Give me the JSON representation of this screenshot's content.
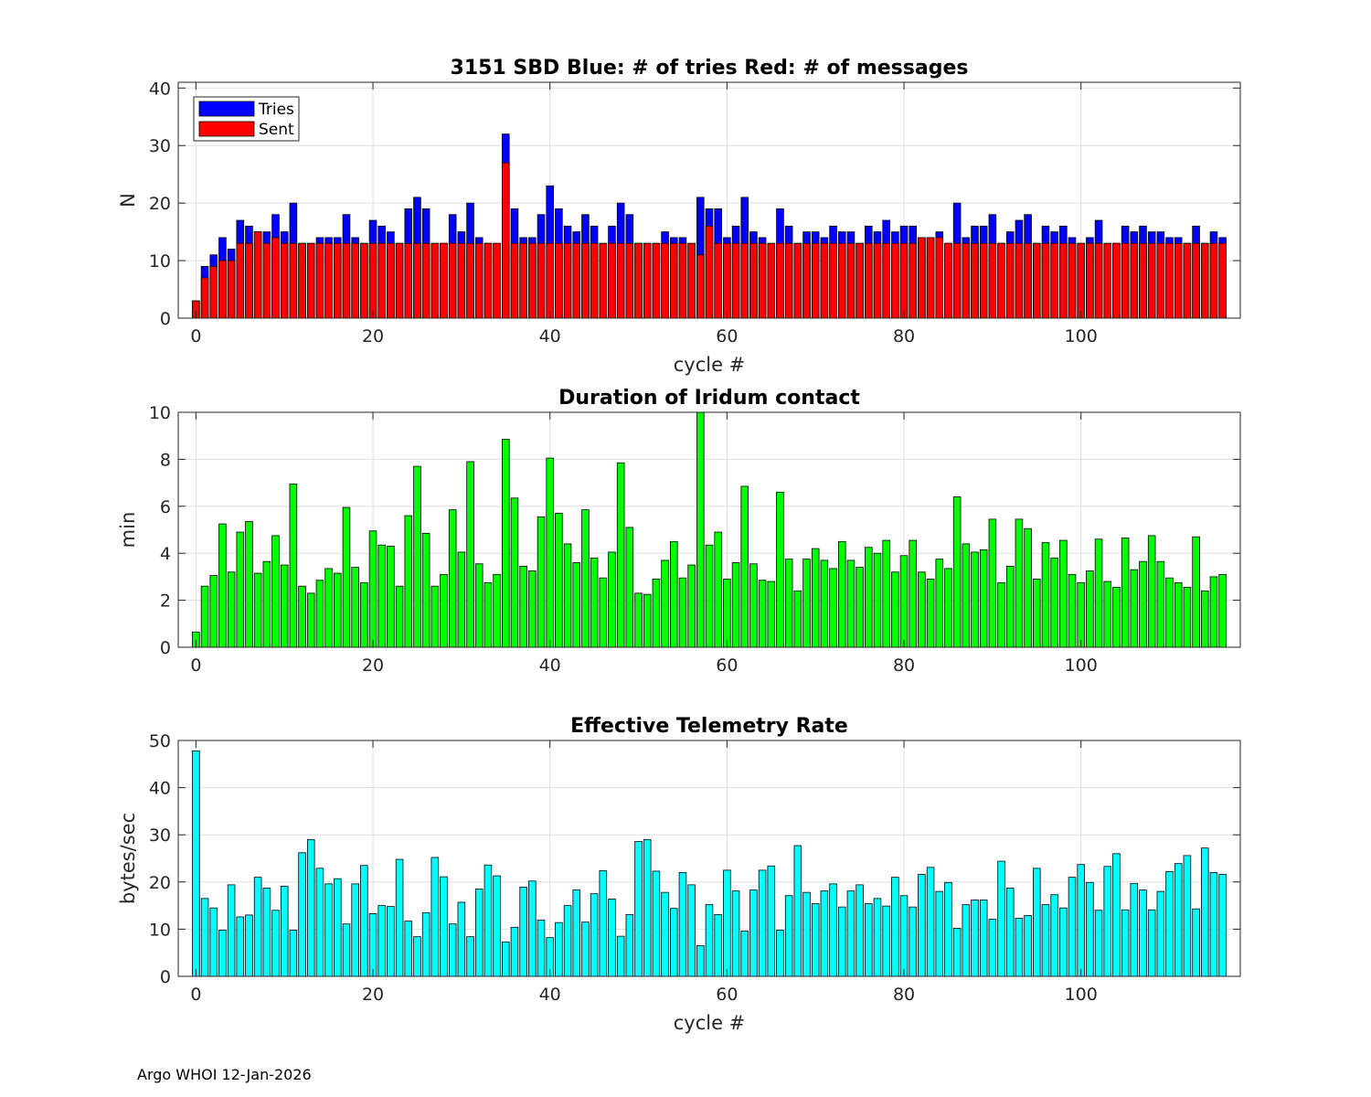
{
  "footer": "Argo WHOI 12-Jan-2026",
  "chart_data": [
    {
      "type": "bar",
      "title": "3151 SBD  Blue: # of tries   Red: # of messages",
      "xlabel": "cycle #",
      "ylabel": "N",
      "xlim": [
        -2,
        118
      ],
      "ylim": [
        0,
        41
      ],
      "xticks": [
        0,
        20,
        40,
        60,
        80,
        100
      ],
      "yticks": [
        0,
        10,
        20,
        30,
        40
      ],
      "grid": true,
      "legend": "top-left",
      "x_start": 0,
      "series": [
        {
          "name": "Tries",
          "color": "#0000ff",
          "values": [
            3,
            9,
            11,
            14,
            12,
            17,
            16,
            15,
            15,
            18,
            15,
            20,
            13,
            13,
            14,
            14,
            14,
            18,
            14,
            13,
            17,
            16,
            15,
            13,
            19,
            21,
            19,
            13,
            13,
            18,
            15,
            20,
            14,
            13,
            13,
            32,
            19,
            14,
            14,
            18,
            23,
            19,
            16,
            15,
            18,
            16,
            13,
            16,
            20,
            18,
            13,
            13,
            13,
            15,
            14,
            14,
            13,
            21,
            19,
            19,
            14,
            16,
            21,
            15,
            14,
            13,
            19,
            16,
            13,
            15,
            15,
            14,
            16,
            15,
            15,
            13,
            16,
            15,
            17,
            15,
            16,
            16,
            14,
            14,
            15,
            13,
            20,
            14,
            16,
            16,
            18,
            13,
            15,
            17,
            18,
            13,
            16,
            15,
            16,
            14,
            13,
            14,
            17,
            13,
            13,
            16,
            15,
            16,
            15,
            15,
            14,
            14,
            13,
            16,
            13,
            15,
            14
          ]
        },
        {
          "name": "Sent",
          "color": "#ff0000",
          "values": [
            3,
            7,
            9,
            10,
            10,
            13,
            13,
            15,
            13,
            14,
            13,
            13,
            13,
            13,
            13,
            13,
            13,
            13,
            13,
            13,
            13,
            13,
            13,
            13,
            13,
            13,
            13,
            13,
            13,
            13,
            13,
            13,
            13,
            13,
            13,
            27,
            13,
            13,
            13,
            13,
            13,
            13,
            13,
            13,
            13,
            13,
            13,
            13,
            13,
            13,
            13,
            13,
            13,
            13,
            13,
            13,
            13,
            11,
            16,
            13,
            13,
            13,
            13,
            13,
            13,
            13,
            13,
            13,
            13,
            13,
            13,
            13,
            13,
            13,
            13,
            13,
            13,
            13,
            13,
            13,
            13,
            13,
            14,
            14,
            14,
            13,
            13,
            13,
            13,
            13,
            13,
            13,
            13,
            13,
            13,
            13,
            13,
            13,
            13,
            13,
            13,
            13,
            13,
            13,
            13,
            13,
            13,
            13,
            13,
            13,
            13,
            13,
            13,
            13,
            13,
            13,
            13
          ]
        }
      ]
    },
    {
      "type": "bar",
      "title": "Duration of Iridum contact",
      "xlabel": "",
      "ylabel": "min",
      "xlim": [
        -2,
        118
      ],
      "ylim": [
        0,
        10
      ],
      "xticks": [
        0,
        20,
        40,
        60,
        80,
        100
      ],
      "yticks": [
        0,
        2,
        4,
        6,
        8,
        10
      ],
      "grid": true,
      "x_start": 0,
      "series": [
        {
          "color": "#00ff00",
          "values": [
            0.65,
            2.6,
            3.05,
            5.25,
            3.2,
            4.9,
            5.35,
            3.15,
            3.65,
            4.75,
            3.5,
            6.95,
            2.6,
            2.3,
            2.85,
            3.35,
            3.15,
            5.95,
            3.4,
            2.75,
            4.95,
            4.35,
            4.3,
            2.6,
            5.6,
            7.7,
            4.85,
            2.6,
            3.1,
            5.85,
            4.05,
            7.9,
            3.55,
            2.75,
            3.1,
            8.85,
            6.35,
            3.45,
            3.25,
            5.55,
            8.05,
            5.7,
            4.4,
            3.6,
            5.85,
            3.8,
            2.95,
            4.05,
            7.85,
            5.1,
            2.3,
            2.25,
            2.9,
            3.7,
            4.5,
            2.95,
            3.5,
            10.0,
            4.35,
            4.9,
            2.9,
            3.6,
            6.85,
            3.55,
            2.85,
            2.8,
            6.6,
            3.75,
            2.4,
            3.75,
            4.2,
            3.7,
            3.35,
            4.5,
            3.7,
            3.4,
            4.25,
            4.0,
            4.55,
            3.2,
            3.9,
            4.55,
            3.2,
            2.9,
            3.75,
            3.35,
            6.4,
            4.4,
            4.05,
            4.15,
            5.45,
            2.75,
            3.45,
            5.45,
            5.05,
            2.9,
            4.45,
            3.8,
            4.55,
            3.1,
            2.75,
            3.25,
            4.6,
            2.8,
            2.55,
            4.65,
            3.3,
            3.65,
            4.75,
            3.65,
            2.95,
            2.75,
            2.55,
            4.7,
            2.4,
            3.0,
            3.1
          ]
        }
      ]
    },
    {
      "type": "bar",
      "title": "Effective Telemetry Rate",
      "xlabel": "cycle #",
      "ylabel": "bytes/sec",
      "xlim": [
        -2,
        118
      ],
      "ylim": [
        0,
        50
      ],
      "xticks": [
        0,
        20,
        40,
        60,
        80,
        100
      ],
      "yticks": [
        0,
        10,
        20,
        30,
        40,
        50
      ],
      "grid": true,
      "x_start": 0,
      "series": [
        {
          "color": "#00ffff",
          "values": [
            47.8,
            16.5,
            14.5,
            9.8,
            19.4,
            12.6,
            13.0,
            21.0,
            18.7,
            14.0,
            19.1,
            9.8,
            26.2,
            29.0,
            22.9,
            19.6,
            20.7,
            11.1,
            19.6,
            23.5,
            13.3,
            15.0,
            14.8,
            24.8,
            11.7,
            8.4,
            13.5,
            25.2,
            21.1,
            11.1,
            15.7,
            8.4,
            18.5,
            23.6,
            21.3,
            7.3,
            10.4,
            18.9,
            20.2,
            11.9,
            8.2,
            11.4,
            15.0,
            18.3,
            11.5,
            17.5,
            22.4,
            16.4,
            8.5,
            13.1,
            28.6,
            29.0,
            22.3,
            17.8,
            14.4,
            22.0,
            19.4,
            6.5,
            15.2,
            13.1,
            22.5,
            18.1,
            9.6,
            18.3,
            22.5,
            23.4,
            9.8,
            17.1,
            27.7,
            17.8,
            15.4,
            18.1,
            19.6,
            14.7,
            18.1,
            19.4,
            15.4,
            16.5,
            14.9,
            21.0,
            17.1,
            14.7,
            21.6,
            23.1,
            18.0,
            19.9,
            10.2,
            15.2,
            16.2,
            16.2,
            12.1,
            24.4,
            18.7,
            12.3,
            12.9,
            22.9,
            15.2,
            17.3,
            14.5,
            21.0,
            23.7,
            19.9,
            14.0,
            23.3,
            26.0,
            14.1,
            19.7,
            18.3,
            14.1,
            18.0,
            22.2,
            23.9,
            25.6,
            14.3,
            27.2,
            22.0,
            21.6
          ]
        }
      ]
    }
  ]
}
